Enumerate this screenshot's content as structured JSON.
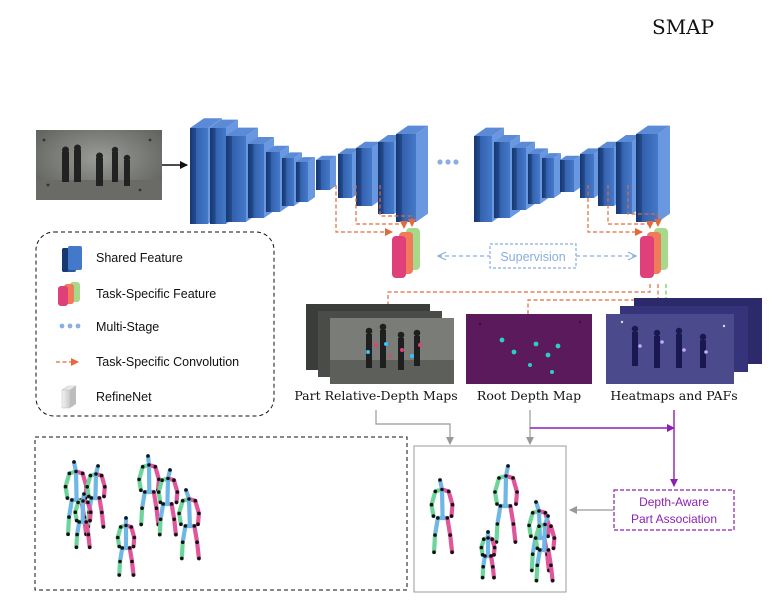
{
  "title": "SMAP",
  "legend": {
    "items": [
      {
        "label": "Shared Feature",
        "icon": "shared-feature-block-icon"
      },
      {
        "label": "Task-Specific Feature",
        "icon": "task-specific-feature-stack-icon"
      },
      {
        "label": "Multi-Stage",
        "icon": "dotted-line-icon"
      },
      {
        "label": "Task-Specific Convolution",
        "icon": "dashed-arrow-icon"
      },
      {
        "label": "RefineNet",
        "icon": "refinenet-block-icon"
      }
    ]
  },
  "supervision_label": "Supervision",
  "outputs": {
    "part_depth": "Part Relative-Depth  Maps",
    "root_depth": "Root Depth Map",
    "heatmaps": "Heatmaps and PAFs"
  },
  "association": {
    "line1": "Depth-Aware",
    "line2": "Part Association"
  },
  "colors": {
    "shared_blue": "#2f5fae",
    "task_orange": "#e06a3a",
    "multistage_blue": "#8aaee0",
    "association_purple": "#8e1fb5",
    "task_pink": "#e0407a",
    "task_green": "#a8d88a",
    "heatmap_green": "#6fcf3f"
  }
}
